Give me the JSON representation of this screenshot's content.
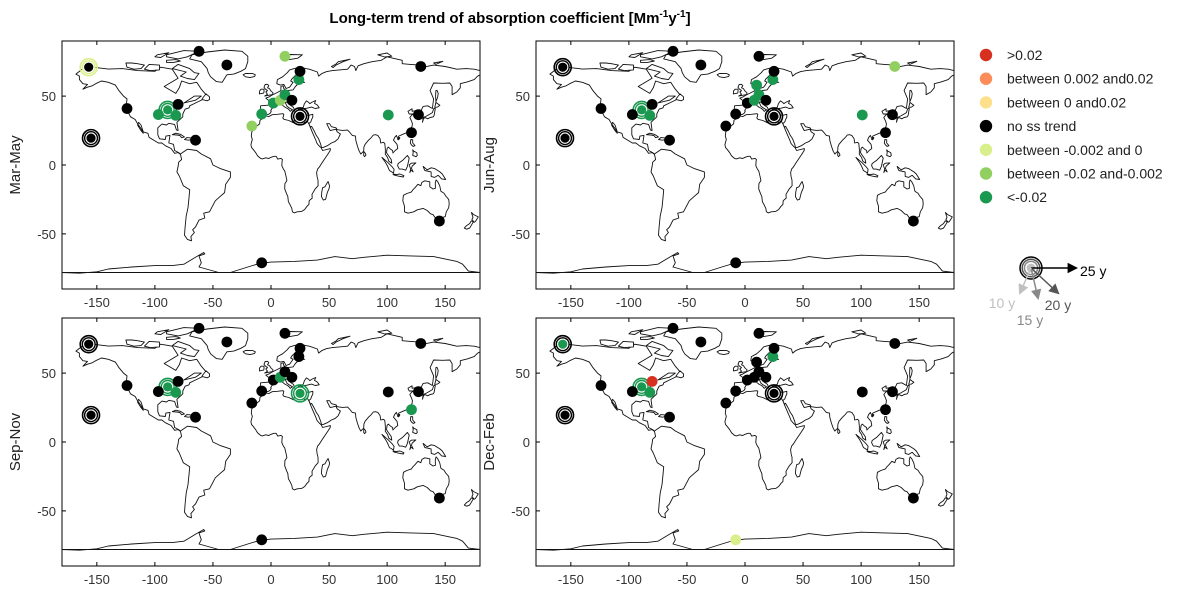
{
  "title": {
    "main": "Long-term trend of absorption coefficient [Mm",
    "sup1": "-1",
    "mid": "y",
    "sup2": "-1",
    "end": "]"
  },
  "colors": {
    "gt_0.02": "#d7301f",
    "between_0.002_0.02": "#fc8d59",
    "between_0_0.02": "#fee08b",
    "no_ss": "#000000",
    "between_-0.002_0": "#d9ef8b",
    "between_-0.02_-0.002": "#91cf60",
    "lt_-0.02": "#1a9850"
  },
  "legend": {
    "items": [
      {
        "label": ">0.02",
        "color": "#d7301f"
      },
      {
        "label": "between 0.002 and0.02",
        "color": "#fc8d59"
      },
      {
        "label": "between 0 and0.02",
        "color": "#fee08b"
      },
      {
        "label": "no ss trend",
        "color": "#000000"
      },
      {
        "label": "between -0.002 and 0",
        "color": "#d9ef8b"
      },
      {
        "label": "between -0.02 and-0.002",
        "color": "#91cf60"
      },
      {
        "label": "<-0.02",
        "color": "#1a9850"
      }
    ],
    "years": [
      {
        "label": "25 y",
        "color": "#000000"
      },
      {
        "label": "20 y",
        "color": "#555555"
      },
      {
        "label": "15 y",
        "color": "#888888"
      },
      {
        "label": "10 y",
        "color": "#c0c0c0"
      }
    ]
  },
  "axes": {
    "xlim": [
      -180,
      180
    ],
    "ylim": [
      -90,
      90
    ],
    "xticks": [
      -150,
      -100,
      -50,
      0,
      50,
      100,
      150
    ],
    "yticks": [
      -50,
      0,
      50
    ]
  },
  "panels": [
    {
      "label": "Mar-May",
      "stations": [
        {
          "lon": -157,
          "lat": 71,
          "c": "no_ss",
          "ring": "#d9ef8b",
          "y": 25
        },
        {
          "lon": -155,
          "lat": 19.5,
          "c": "no_ss",
          "ring": "#000000",
          "y": 25
        },
        {
          "lon": -124,
          "lat": 41,
          "c": "no_ss"
        },
        {
          "lon": -89,
          "lat": 40,
          "c": "lt_-0.02",
          "ring": "#1a9850",
          "y": 25
        },
        {
          "lon": -97,
          "lat": 36.6,
          "c": "lt_-0.02"
        },
        {
          "lon": -80,
          "lat": 44,
          "c": "no_ss"
        },
        {
          "lon": -82,
          "lat": 36,
          "c": "lt_-0.02"
        },
        {
          "lon": -65,
          "lat": 18,
          "c": "no_ss"
        },
        {
          "lon": -62,
          "lat": 82.5,
          "c": "no_ss"
        },
        {
          "lon": -38,
          "lat": 72.6,
          "c": "no_ss"
        },
        {
          "lon": 12,
          "lat": 78.9,
          "c": "between_-0.02_-0.002"
        },
        {
          "lon": -16.5,
          "lat": 28.3,
          "c": "between_-0.02_-0.002"
        },
        {
          "lon": -8,
          "lat": 37,
          "c": "lt_-0.02"
        },
        {
          "lon": 2,
          "lat": 45,
          "c": "lt_-0.02"
        },
        {
          "lon": 8,
          "lat": 47,
          "c": "between_-0.02_-0.002"
        },
        {
          "lon": 12,
          "lat": 51,
          "c": "lt_-0.02"
        },
        {
          "lon": 18,
          "lat": 47,
          "c": "no_ss"
        },
        {
          "lon": 24,
          "lat": 62,
          "c": "lt_-0.02"
        },
        {
          "lon": 25,
          "lat": 68,
          "c": "no_ss"
        },
        {
          "lon": 25,
          "lat": 35.3,
          "c": "no_ss",
          "ring": "#000000",
          "y": 25
        },
        {
          "lon": 101,
          "lat": 36.3,
          "c": "lt_-0.02"
        },
        {
          "lon": 127,
          "lat": 36.5,
          "c": "no_ss"
        },
        {
          "lon": 129,
          "lat": 71.5,
          "c": "no_ss"
        },
        {
          "lon": 121,
          "lat": 23.5,
          "c": "no_ss"
        },
        {
          "lon": 145,
          "lat": -40.7,
          "c": "no_ss"
        },
        {
          "lon": -8,
          "lat": -71,
          "c": "no_ss"
        }
      ]
    },
    {
      "label": "Jun-Aug",
      "stations": [
        {
          "lon": -157,
          "lat": 71,
          "c": "no_ss",
          "ring": "#000000",
          "y": 25
        },
        {
          "lon": -155,
          "lat": 19.5,
          "c": "no_ss",
          "ring": "#000000",
          "y": 25
        },
        {
          "lon": -124,
          "lat": 41,
          "c": "no_ss"
        },
        {
          "lon": -89,
          "lat": 40,
          "c": "lt_-0.02",
          "ring": "#1a9850",
          "y": 25
        },
        {
          "lon": -97,
          "lat": 36.6,
          "c": "no_ss"
        },
        {
          "lon": -80,
          "lat": 44,
          "c": "no_ss"
        },
        {
          "lon": -82,
          "lat": 36,
          "c": "lt_-0.02"
        },
        {
          "lon": -65,
          "lat": 18,
          "c": "no_ss"
        },
        {
          "lon": -62,
          "lat": 82.5,
          "c": "no_ss"
        },
        {
          "lon": -38,
          "lat": 72.6,
          "c": "no_ss"
        },
        {
          "lon": 12,
          "lat": 78.9,
          "c": "no_ss"
        },
        {
          "lon": -16.5,
          "lat": 28.3,
          "c": "no_ss"
        },
        {
          "lon": -8,
          "lat": 37,
          "c": "no_ss"
        },
        {
          "lon": 2,
          "lat": 45,
          "c": "no_ss"
        },
        {
          "lon": 8,
          "lat": 47,
          "c": "lt_-0.02"
        },
        {
          "lon": 10,
          "lat": 58,
          "c": "lt_-0.02"
        },
        {
          "lon": 12,
          "lat": 51,
          "c": "lt_-0.02"
        },
        {
          "lon": 18,
          "lat": 47,
          "c": "no_ss"
        },
        {
          "lon": 24,
          "lat": 62,
          "c": "lt_-0.02"
        },
        {
          "lon": 25,
          "lat": 68,
          "c": "no_ss"
        },
        {
          "lon": 25,
          "lat": 35.3,
          "c": "no_ss",
          "ring": "#000000",
          "y": 25
        },
        {
          "lon": 101,
          "lat": 36.3,
          "c": "lt_-0.02"
        },
        {
          "lon": 127,
          "lat": 36.5,
          "c": "no_ss"
        },
        {
          "lon": 129,
          "lat": 71.5,
          "c": "between_-0.02_-0.002"
        },
        {
          "lon": 121,
          "lat": 23.5,
          "c": "no_ss"
        },
        {
          "lon": 145,
          "lat": -40.7,
          "c": "no_ss"
        },
        {
          "lon": -8,
          "lat": -71,
          "c": "no_ss"
        }
      ]
    },
    {
      "label": "Sep-Nov",
      "stations": [
        {
          "lon": -157,
          "lat": 71,
          "c": "no_ss",
          "ring": "#000000",
          "y": 25
        },
        {
          "lon": -155,
          "lat": 19.5,
          "c": "no_ss",
          "ring": "#000000",
          "y": 25
        },
        {
          "lon": -124,
          "lat": 41,
          "c": "no_ss"
        },
        {
          "lon": -89,
          "lat": 40,
          "c": "lt_-0.02",
          "ring": "#1a9850",
          "y": 25
        },
        {
          "lon": -97,
          "lat": 36.6,
          "c": "no_ss"
        },
        {
          "lon": -80,
          "lat": 44,
          "c": "no_ss"
        },
        {
          "lon": -82,
          "lat": 36,
          "c": "lt_-0.02"
        },
        {
          "lon": -65,
          "lat": 18,
          "c": "no_ss"
        },
        {
          "lon": -62,
          "lat": 82.5,
          "c": "no_ss"
        },
        {
          "lon": -38,
          "lat": 72.6,
          "c": "no_ss"
        },
        {
          "lon": 12,
          "lat": 78.9,
          "c": "no_ss"
        },
        {
          "lon": -16.5,
          "lat": 28.3,
          "c": "no_ss"
        },
        {
          "lon": -8,
          "lat": 37,
          "c": "no_ss"
        },
        {
          "lon": 2,
          "lat": 45,
          "c": "no_ss"
        },
        {
          "lon": 8,
          "lat": 47,
          "c": "lt_-0.02"
        },
        {
          "lon": 12,
          "lat": 51,
          "c": "no_ss"
        },
        {
          "lon": 18,
          "lat": 47,
          "c": "no_ss"
        },
        {
          "lon": 24,
          "lat": 62,
          "c": "no_ss"
        },
        {
          "lon": 25,
          "lat": 68,
          "c": "no_ss"
        },
        {
          "lon": 25,
          "lat": 35.3,
          "c": "lt_-0.02",
          "ring": "#1a9850",
          "y": 25
        },
        {
          "lon": 101,
          "lat": 36.3,
          "c": "no_ss"
        },
        {
          "lon": 127,
          "lat": 36.5,
          "c": "no_ss"
        },
        {
          "lon": 129,
          "lat": 71.5,
          "c": "no_ss"
        },
        {
          "lon": 121,
          "lat": 23.5,
          "c": "lt_-0.02"
        },
        {
          "lon": 145,
          "lat": -40.7,
          "c": "no_ss"
        },
        {
          "lon": -8,
          "lat": -71,
          "c": "no_ss"
        }
      ]
    },
    {
      "label": "Dec-Feb",
      "stations": [
        {
          "lon": -157,
          "lat": 71,
          "c": "lt_-0.02",
          "ring": "#000000",
          "y": 25
        },
        {
          "lon": -155,
          "lat": 19.5,
          "c": "no_ss",
          "ring": "#000000",
          "y": 25
        },
        {
          "lon": -124,
          "lat": 41,
          "c": "no_ss"
        },
        {
          "lon": -89,
          "lat": 40,
          "c": "lt_-0.02",
          "ring": "#1a9850",
          "y": 25
        },
        {
          "lon": -97,
          "lat": 36.6,
          "c": "no_ss"
        },
        {
          "lon": -80,
          "lat": 44,
          "c": "gt_0.02"
        },
        {
          "lon": -82,
          "lat": 36,
          "c": "lt_-0.02"
        },
        {
          "lon": -65,
          "lat": 18,
          "c": "no_ss"
        },
        {
          "lon": -62,
          "lat": 82.5,
          "c": "no_ss"
        },
        {
          "lon": -38,
          "lat": 72.6,
          "c": "no_ss"
        },
        {
          "lon": 12,
          "lat": 78.9,
          "c": "no_ss"
        },
        {
          "lon": -16.5,
          "lat": 28.3,
          "c": "no_ss"
        },
        {
          "lon": -8,
          "lat": 37,
          "c": "no_ss"
        },
        {
          "lon": 2,
          "lat": 45,
          "c": "no_ss"
        },
        {
          "lon": 8,
          "lat": 47,
          "c": "no_ss"
        },
        {
          "lon": 10,
          "lat": 58,
          "c": "no_ss"
        },
        {
          "lon": 12,
          "lat": 51,
          "c": "no_ss"
        },
        {
          "lon": 18,
          "lat": 47,
          "c": "no_ss"
        },
        {
          "lon": 24,
          "lat": 62,
          "c": "lt_-0.02"
        },
        {
          "lon": 25,
          "lat": 68,
          "c": "no_ss"
        },
        {
          "lon": 25,
          "lat": 35.3,
          "c": "no_ss",
          "ring": "#000000",
          "y": 25
        },
        {
          "lon": 101,
          "lat": 36.3,
          "c": "no_ss"
        },
        {
          "lon": 127,
          "lat": 36.5,
          "c": "no_ss"
        },
        {
          "lon": 129,
          "lat": 71.5,
          "c": "no_ss"
        },
        {
          "lon": 121,
          "lat": 23.5,
          "c": "no_ss"
        },
        {
          "lon": 145,
          "lat": -40.7,
          "c": "no_ss"
        },
        {
          "lon": -8,
          "lat": -71,
          "c": "between_-0.002_0"
        }
      ]
    }
  ]
}
